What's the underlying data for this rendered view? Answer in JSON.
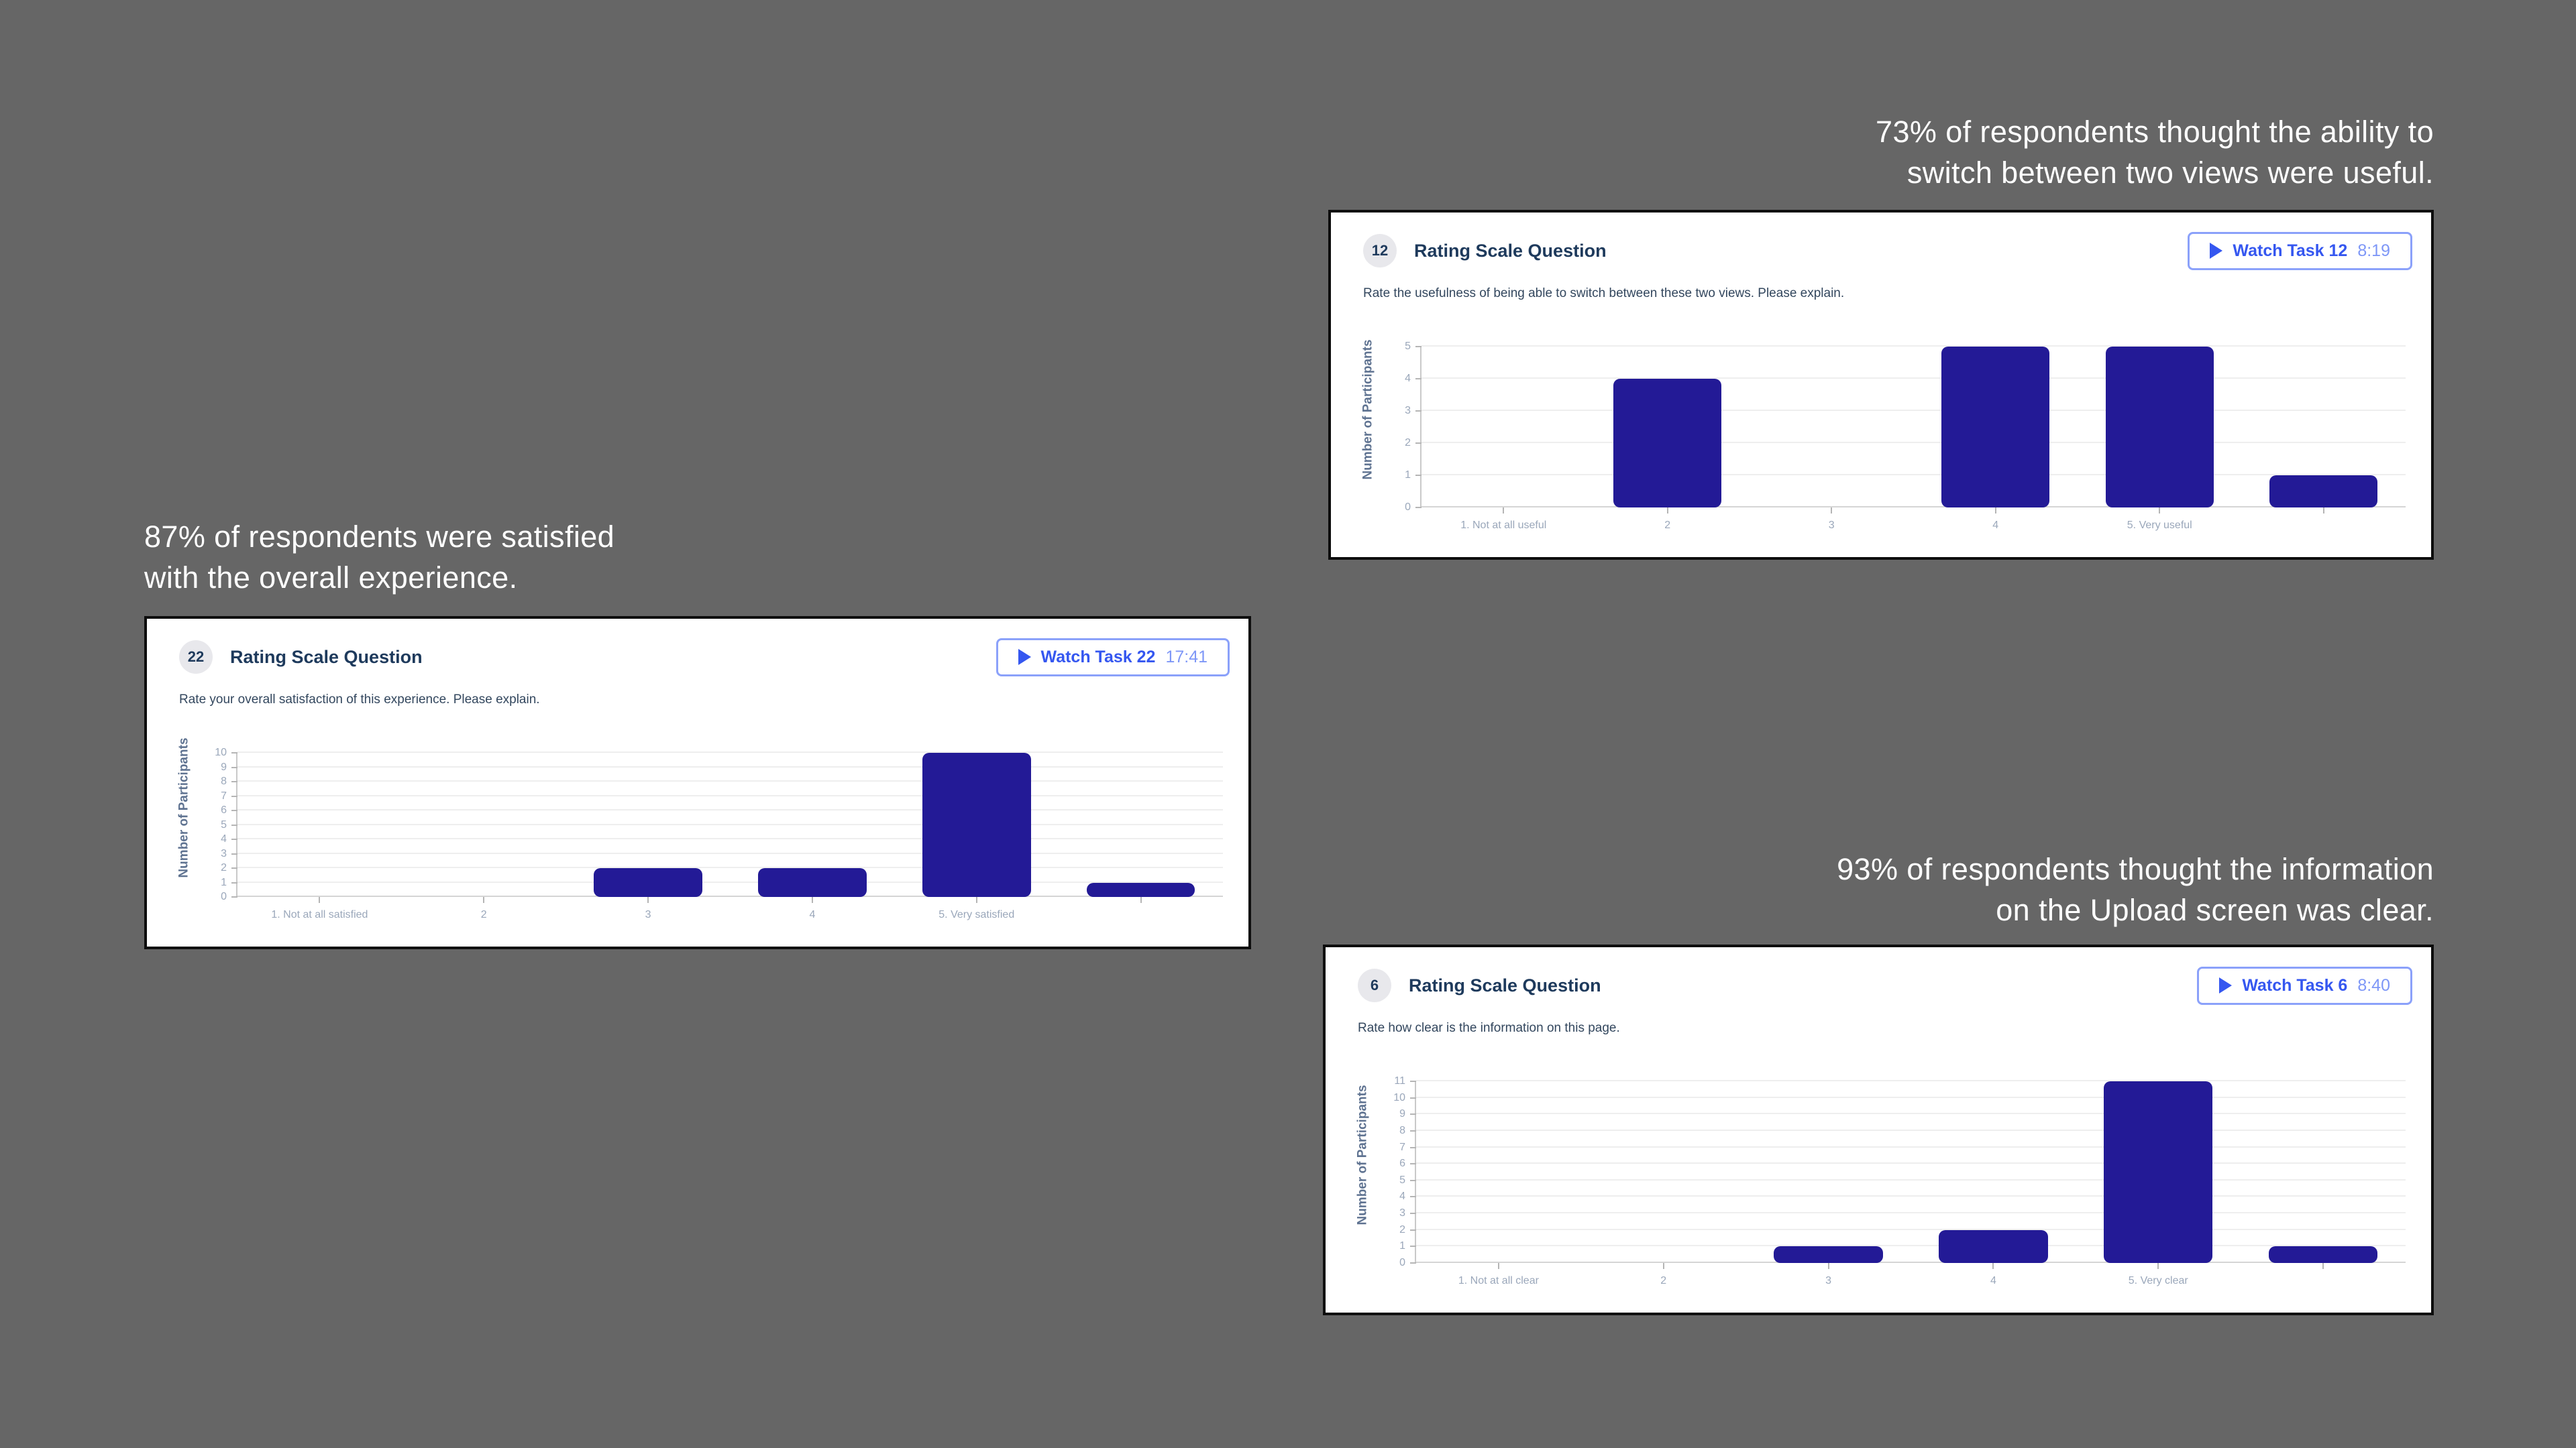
{
  "page": {
    "background_color": "#666666"
  },
  "annotations": [
    {
      "line1": "73% of respondents thought the ability to",
      "line2": "switch between two views were useful."
    },
    {
      "line1": "87% of respondents were satisfied",
      "line2": "with the overall experience."
    },
    {
      "line1": "93% of respondents thought the information",
      "line2": "on the Upload screen was clear."
    }
  ],
  "cards": [
    {
      "badge": "12",
      "title": "Rating Scale Question",
      "description": "Rate the usefulness of being able to switch between these two views. Please explain.",
      "watch_button": {
        "label": "Watch Task 12",
        "time": "8:19"
      }
    },
    {
      "badge": "22",
      "title": "Rating Scale Question",
      "description": "Rate your overall satisfaction of this experience. Please explain.",
      "watch_button": {
        "label": "Watch Task 22",
        "time": "17:41"
      }
    },
    {
      "badge": "6",
      "title": "Rating Scale Question",
      "description": "Rate how clear is the information on this page.",
      "watch_button": {
        "label": "Watch Task 6",
        "time": "8:40"
      }
    }
  ],
  "chart_data": [
    {
      "type": "bar",
      "title": "",
      "xlabel": "",
      "ylabel": "Number of Participants",
      "ylim": [
        0,
        5
      ],
      "ytick_step": 1,
      "grid": true,
      "legend": false,
      "categories": [
        "1. Not at all useful",
        "2",
        "3",
        "4",
        "5. Very useful",
        ""
      ],
      "values": [
        0,
        4,
        0,
        5,
        5,
        1
      ],
      "bar_color": "#231a96"
    },
    {
      "type": "bar",
      "title": "",
      "xlabel": "",
      "ylabel": "Number of Participants",
      "ylim": [
        0,
        10
      ],
      "ytick_step": 1,
      "grid": true,
      "legend": false,
      "categories": [
        "1. Not at all satisfied",
        "2",
        "3",
        "4",
        "5. Very satisfied",
        ""
      ],
      "values": [
        0,
        0,
        2,
        2,
        10,
        1
      ],
      "bar_color": "#231a96"
    },
    {
      "type": "bar",
      "title": "",
      "xlabel": "",
      "ylabel": "Number of Participants",
      "ylim": [
        0,
        11
      ],
      "ytick_step": 1,
      "grid": true,
      "legend": false,
      "categories": [
        "1. Not at all clear",
        "2",
        "3",
        "4",
        "5. Very clear",
        ""
      ],
      "values": [
        0,
        0,
        1,
        2,
        11,
        1
      ],
      "bar_color": "#231a96"
    }
  ],
  "colors": {
    "background": "#666666",
    "card_background": "#ffffff",
    "card_border": "#0d0d0d",
    "bar": "#231a96",
    "accent_blue": "#3557f0",
    "time_blue": "#7e97f7",
    "title_navy": "#1e3a5c"
  }
}
